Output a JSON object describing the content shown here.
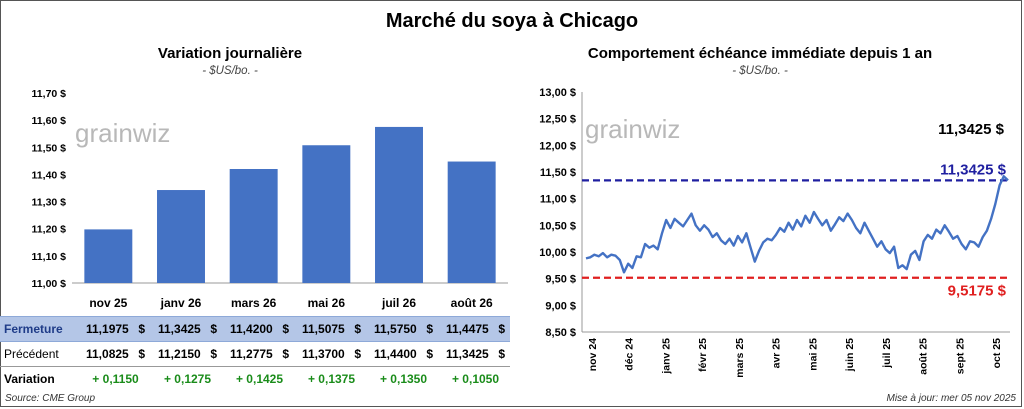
{
  "title": "Marché du soya à Chicago",
  "footer": {
    "source": "Source: CME Group",
    "updated": "Mise à jour: mer 05 nov 2025"
  },
  "watermark": "grainwiz",
  "colors": {
    "bar": "#4472c4",
    "line": "#4472c4",
    "high_ref": "#1f1fa0",
    "low_ref": "#e02020",
    "variation": "#1a8c1a"
  },
  "chart_data": [
    {
      "type": "bar",
      "title": "Variation journalière",
      "subtitle": "- $US/bo. -",
      "categories": [
        "nov 25",
        "janv 26",
        "mars 26",
        "mai 26",
        "juil 26",
        "août 26"
      ],
      "values": [
        11.1975,
        11.3425,
        11.42,
        11.5075,
        11.575,
        11.4475
      ],
      "ylim": [
        11.0,
        11.7
      ],
      "yticks": [
        "11,00 $",
        "11,10 $",
        "11,20 $",
        "11,30 $",
        "11,40 $",
        "11,50 $",
        "11,60 $",
        "11,70 $"
      ],
      "ytick_values": [
        11.0,
        11.1,
        11.2,
        11.3,
        11.4,
        11.5,
        11.6,
        11.7
      ],
      "grid": false
    },
    {
      "type": "line",
      "title": "Comportement échéance immédiate depuis 1 an",
      "subtitle": "- $US/bo. -",
      "x_labels": [
        "nov 24",
        "déc 24",
        "janv 25",
        "févr 25",
        "mars 25",
        "avr 25",
        "mai 25",
        "juin 25",
        "juil 25",
        "août 25",
        "sept 25",
        "oct 25"
      ],
      "ylim": [
        8.5,
        13.0
      ],
      "yticks": [
        "8,50 $",
        "9,00 $",
        "9,50 $",
        "10,00 $",
        "10,50 $",
        "11,00 $",
        "11,50 $",
        "12,00 $",
        "12,50 $",
        "13,00 $"
      ],
      "ytick_values": [
        8.5,
        9.0,
        9.5,
        10.0,
        10.5,
        11.0,
        11.5,
        12.0,
        12.5,
        13.0
      ],
      "values": [
        9.88,
        9.9,
        9.95,
        9.92,
        9.98,
        9.9,
        9.95,
        9.93,
        9.85,
        9.62,
        9.78,
        9.7,
        9.92,
        9.9,
        10.15,
        10.08,
        10.12,
        10.05,
        10.35,
        10.6,
        10.45,
        10.62,
        10.55,
        10.48,
        10.6,
        10.72,
        10.5,
        10.4,
        10.5,
        10.42,
        10.28,
        10.35,
        10.22,
        10.15,
        10.25,
        10.12,
        10.3,
        10.18,
        10.35,
        10.08,
        9.82,
        10.02,
        10.18,
        10.25,
        10.22,
        10.32,
        10.45,
        10.38,
        10.55,
        10.42,
        10.6,
        10.48,
        10.68,
        10.55,
        10.75,
        10.62,
        10.5,
        10.6,
        10.4,
        10.52,
        10.65,
        10.58,
        10.72,
        10.6,
        10.45,
        10.35,
        10.55,
        10.4,
        10.25,
        10.1,
        10.2,
        10.05,
        9.98,
        10.1,
        9.7,
        9.75,
        9.68,
        9.95,
        10.02,
        9.85,
        10.2,
        10.32,
        10.25,
        10.42,
        10.35,
        10.5,
        10.38,
        10.25,
        10.3,
        10.15,
        10.05,
        10.2,
        10.18,
        10.1,
        10.28,
        10.4,
        10.62,
        10.9,
        11.25,
        11.42,
        11.3425
      ],
      "reference_lines": [
        {
          "value": 11.3425,
          "label": "11,3425 $",
          "color": "#1f1fa0"
        },
        {
          "value": 9.5175,
          "label": "9,5175 $",
          "color": "#e02020"
        }
      ],
      "last_label": "11,3425 $",
      "grid": false
    }
  ],
  "table": {
    "rows": [
      {
        "label": "Fermeture",
        "values": [
          "11,1975",
          "11,3425",
          "11,4200",
          "11,5075",
          "11,5750",
          "11,4475"
        ],
        "unit": "$"
      },
      {
        "label": "Précédent",
        "values": [
          "11,0825",
          "11,2150",
          "11,2775",
          "11,3700",
          "11,4400",
          "11,3425"
        ],
        "unit": "$"
      },
      {
        "label": "Variation",
        "values": [
          "+ 0,1150",
          "+ 0,1275",
          "+ 0,1425",
          "+ 0,1375",
          "+ 0,1350",
          "+ 0,1050"
        ],
        "unit": ""
      }
    ]
  }
}
